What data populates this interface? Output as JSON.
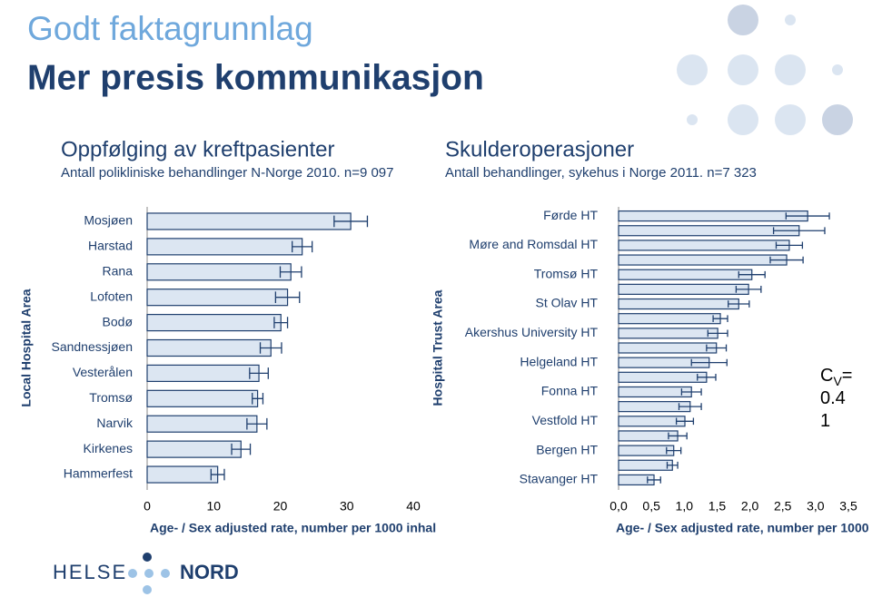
{
  "slide": {
    "title": "Godt faktagrunnlag",
    "subtitle": "Mer presis kommunikasjon"
  },
  "logo": {
    "left": "HELSE",
    "right": "NORD"
  },
  "chart_data": [
    {
      "type": "hbar",
      "title": "Oppfølging av kreftpasienter",
      "subtitle": "Antall polikliniske behandlinger N-Norge 2010. n=9 097",
      "xlabel": "Age- / Sex adjusted rate, number per 1000 inhal",
      "ylabel": "Local Hospital Area",
      "categories": [
        "Mosjøen",
        "Harstad",
        "Rana",
        "Lofoten",
        "Bodø",
        "Sandnessjøen",
        "Vesterålen",
        "Tromsø",
        "Narvik",
        "Kirkenes",
        "Hammerfest"
      ],
      "values": [
        30.6,
        23.3,
        21.6,
        21.1,
        20.1,
        18.6,
        16.8,
        16.6,
        16.5,
        14.1,
        10.6
      ],
      "errors": [
        2.5,
        1.5,
        1.6,
        1.8,
        1.0,
        1.6,
        1.4,
        0.8,
        1.5,
        1.4,
        1.0
      ],
      "color": "#dce6f2",
      "xlim": [
        0,
        40
      ],
      "xticks": [
        0,
        10,
        20,
        30,
        40
      ]
    },
    {
      "type": "hbar",
      "title": "Skulderoperasjoner",
      "subtitle": "Antall behandlinger, sykehus i Norge 2011. n=7 323",
      "xlabel": "Age- / Sex adjusted rate, number per 1000",
      "ylabel": "Hospital Trust Area",
      "categories": [
        "Førde HT",
        null,
        "Møre and Romsdal HT",
        null,
        "Tromsø HT",
        null,
        "St Olav HT",
        null,
        "Akershus University HT",
        null,
        "Helgeland HT",
        null,
        "Fonna HT",
        null,
        "Vestfold HT",
        null,
        "Bergen HT",
        null,
        "Stavanger HT"
      ],
      "values": [
        2.88,
        2.75,
        2.6,
        2.56,
        2.03,
        1.98,
        1.83,
        1.55,
        1.51,
        1.49,
        1.38,
        1.34,
        1.11,
        1.09,
        1.01,
        0.9,
        0.84,
        0.82,
        0.54
      ],
      "errors": [
        0.33,
        0.39,
        0.2,
        0.25,
        0.2,
        0.19,
        0.16,
        0.11,
        0.15,
        0.15,
        0.27,
        0.14,
        0.15,
        0.17,
        0.13,
        0.14,
        0.11,
        0.08,
        0.1
      ],
      "color": "#dce6f2",
      "xlim": [
        0,
        3.5
      ],
      "xticks": [
        {
          "value": 0,
          "label": "0,0"
        },
        {
          "value": 0.5,
          "label": "0,5"
        },
        {
          "value": 1,
          "label": "1,0"
        },
        {
          "value": 1.5,
          "label": "1,5"
        },
        {
          "value": 2,
          "label": "2,0"
        },
        {
          "value": 2.5,
          "label": "2,5"
        },
        {
          "value": 3,
          "label": "3,0"
        },
        {
          "value": 3.5,
          "label": "3,5"
        }
      ],
      "annotation": {
        "symbol": "C",
        "subscript": "V",
        "text": "= 0.41"
      }
    }
  ]
}
